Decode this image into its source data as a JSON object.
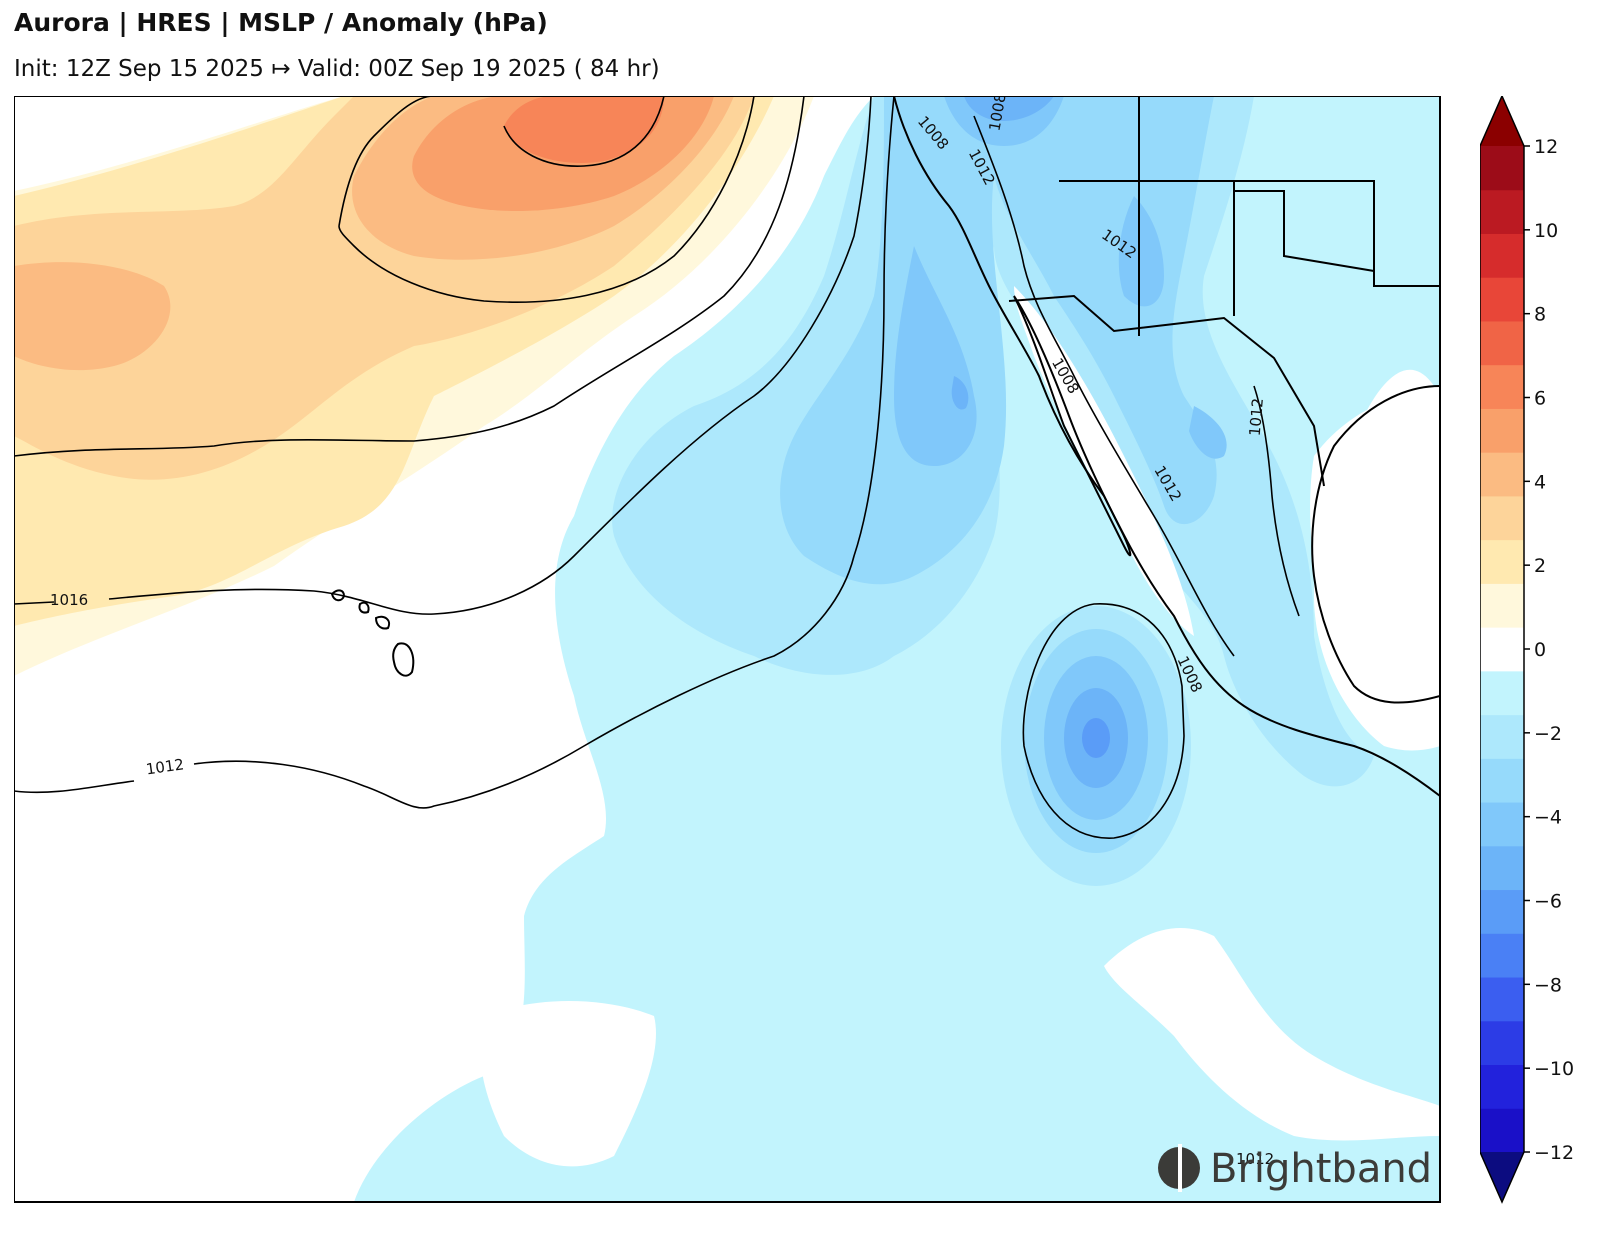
{
  "header": {
    "title": "Aurora | HRES | MSLP / Anomaly (hPa)",
    "subtitle": "Init: 12Z Sep 15 2025 ↦ Valid: 00Z Sep 19 2025 ( 84 hr)"
  },
  "map": {
    "variable": "MSLP anomaly",
    "units": "hPa",
    "contour_labels": [
      "1016",
      "1012",
      "1008",
      "1008",
      "1012",
      "1012",
      "1008",
      "1012",
      "1012",
      "1012",
      "1008"
    ]
  },
  "colorbar": {
    "ticks": [
      "12",
      "10",
      "8",
      "6",
      "4",
      "2",
      "0",
      "−2",
      "−4",
      "−6",
      "−8",
      "−10",
      "−12"
    ],
    "levels": [
      -12,
      -11,
      -10,
      -9,
      -8,
      -7,
      -6,
      -5,
      -4,
      -3,
      -2,
      -1,
      1,
      2,
      3,
      4,
      5,
      6,
      7,
      8,
      9,
      10,
      11,
      12
    ],
    "colors": [
      "#1a10c8",
      "#2222dc",
      "#2c3ce6",
      "#3b5ef0",
      "#4a80f5",
      "#5a9cf7",
      "#6cb4f8",
      "#80c8fa",
      "#96dafb",
      "#ade8fc",
      "#c2f4fd",
      "#ffffff",
      "#fff8dc",
      "#ffe9b0",
      "#fdd49a",
      "#fbbb82",
      "#f9a06a",
      "#f78558",
      "#f06446",
      "#e84638",
      "#d62c2c",
      "#bb1a22",
      "#9c0c18"
    ],
    "extend_low_color": "#0c0c80",
    "extend_high_color": "#8b0000"
  },
  "branding": {
    "logo_text": "Brightband"
  },
  "colors": {
    "frame": "#000000",
    "anomaly_neg_1": "#c2f4fd",
    "anomaly_neg_2": "#ade8fc",
    "anomaly_neg_3": "#96dafb",
    "anomaly_neg_4": "#80c8fa",
    "anomaly_neg_5": "#6cb4f8",
    "anomaly_pos_1": "#fff8dc",
    "anomaly_pos_2": "#ffe9b0",
    "anomaly_pos_3": "#fdd49a",
    "anomaly_pos_4": "#fbbb82",
    "anomaly_pos_5": "#f9a06a",
    "anomaly_pos_6": "#f78558"
  }
}
